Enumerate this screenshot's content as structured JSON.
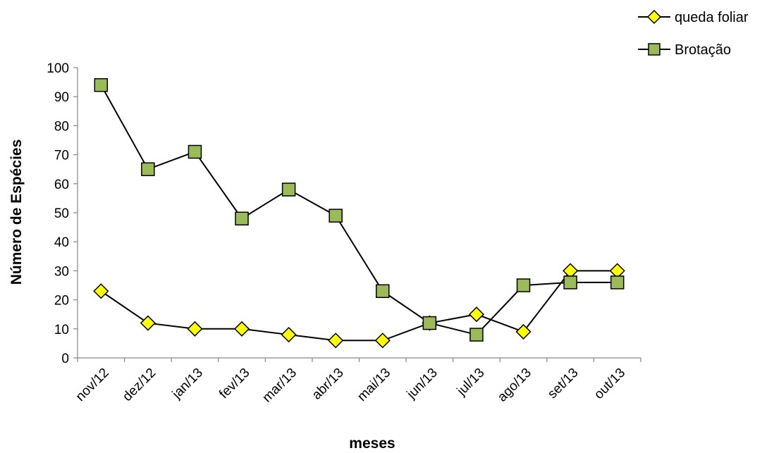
{
  "chart_data": {
    "type": "line",
    "title": "",
    "xlabel": "meses",
    "ylabel": "Número de Espécies",
    "categories": [
      "nov/12",
      "dez/12",
      "jan/13",
      "fev/13",
      "mar/13",
      "abr/13",
      "mai/13",
      "jun/13",
      "jul/13",
      "ago/13",
      "set/13",
      "out/13"
    ],
    "ylim": [
      0,
      100
    ],
    "yticks": [
      "0",
      "10",
      "20",
      "30",
      "40",
      "50",
      "60",
      "70",
      "80",
      "90",
      "100"
    ],
    "grid": false,
    "legend_position": "top-right",
    "series": [
      {
        "name": "queda foliar",
        "marker": "diamond",
        "color": "#ffff00",
        "values": [
          23,
          12,
          10,
          10,
          8,
          6,
          6,
          12,
          15,
          9,
          30,
          30
        ]
      },
      {
        "name": "Brotação",
        "marker": "square",
        "color": "#9bbb59",
        "values": [
          94,
          65,
          71,
          48,
          58,
          49,
          23,
          12,
          8,
          25,
          26,
          26
        ]
      }
    ]
  }
}
